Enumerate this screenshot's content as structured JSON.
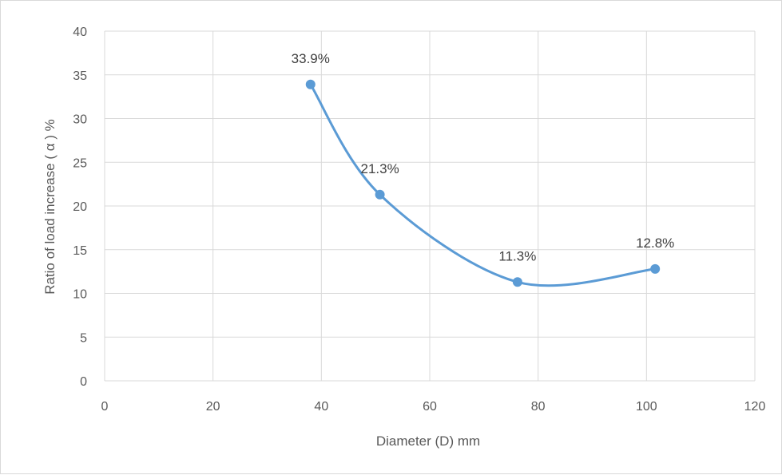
{
  "chart_data": {
    "type": "scatter",
    "title": "",
    "xlabel": "Diameter (D) mm",
    "ylabel": "Ratio of load increase ( α ) %",
    "xlim": [
      0,
      120
    ],
    "ylim": [
      0,
      40
    ],
    "x_ticks": [
      0,
      20,
      40,
      60,
      80,
      100,
      120
    ],
    "y_ticks": [
      0,
      5,
      10,
      15,
      20,
      25,
      30,
      35,
      40
    ],
    "grid": true,
    "legend": "none",
    "line": "smooth",
    "color": "#5b9bd5",
    "series": [
      {
        "x": [
          38,
          50.8,
          76.2,
          101.6
        ],
        "values": [
          33.9,
          21.3,
          11.3,
          12.8
        ],
        "labels": [
          "33.9%",
          "21.3%",
          "11.3%",
          "12.8%"
        ]
      }
    ]
  }
}
